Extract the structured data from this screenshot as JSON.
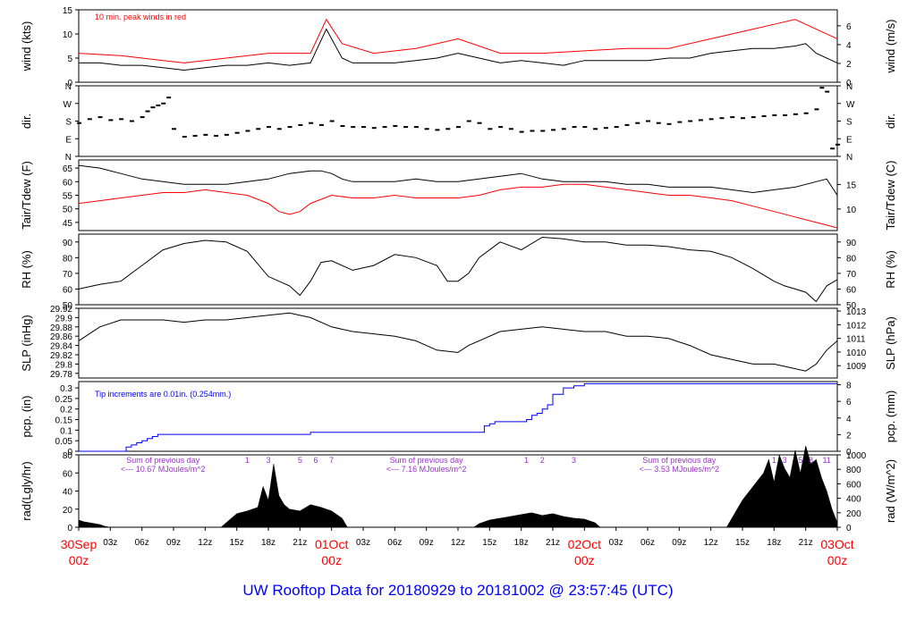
{
  "title": "UW Rooftop Data for 20180929  to  20181002 @ 23:57:45  (UTC)",
  "colors": {
    "black": "#000000",
    "red": "#ff0000",
    "blue": "#0000ff",
    "purple": "#9933cc",
    "title": "#0000ff"
  },
  "x_axis": {
    "tick_labels": [
      "03z",
      "06z",
      "09z",
      "12z",
      "15z",
      "18z",
      "21z",
      "03z",
      "06z",
      "09z",
      "12z",
      "15z",
      "18z",
      "21z",
      "03z",
      "06z",
      "09z",
      "12z",
      "15z",
      "18z",
      "21z"
    ],
    "tick_hours": [
      3,
      6,
      9,
      12,
      15,
      18,
      21,
      27,
      30,
      33,
      36,
      39,
      42,
      45,
      51,
      54,
      57,
      60,
      63,
      66,
      69
    ],
    "day_labels": [
      {
        "date": "30Sep",
        "time": "00z",
        "hour": 0
      },
      {
        "date": "01Oct",
        "time": "00z",
        "hour": 24
      },
      {
        "date": "02Oct",
        "time": "00z",
        "hour": 48
      },
      {
        "date": "03Oct",
        "time": "00z",
        "hour": 72
      }
    ],
    "range_hours": [
      0,
      72
    ]
  },
  "chart_data": [
    {
      "type": "line",
      "panel": "wind",
      "ylabel_left": "wind (kts)",
      "ylabel_right": "wind (m/s)",
      "ylim": [
        0,
        15
      ],
      "left_ticks": [
        0,
        5,
        10,
        15
      ],
      "right_ticks": [
        0,
        2,
        4,
        6
      ],
      "annotation": "10 min. peak winds in red",
      "series": [
        {
          "color": "black",
          "x": [
            0,
            2,
            4,
            6,
            8,
            10,
            12,
            14,
            16,
            18,
            20,
            22,
            23.5,
            25,
            26,
            28,
            30,
            32,
            34,
            36,
            38,
            40,
            42,
            44,
            46,
            48,
            50,
            52,
            54,
            56,
            58,
            60,
            62,
            64,
            66,
            68,
            69,
            70,
            72
          ],
          "y": [
            4,
            4,
            3.5,
            3.5,
            3,
            2.5,
            3,
            3.5,
            3.5,
            4,
            3.5,
            4,
            11,
            5,
            4,
            4,
            4,
            4.5,
            5,
            6,
            5,
            4,
            4.5,
            4,
            3.5,
            4.5,
            4.5,
            4.5,
            4.5,
            5,
            5,
            6,
            6.5,
            7,
            7,
            7.5,
            8,
            6,
            4
          ]
        },
        {
          "color": "red",
          "x": [
            0,
            4,
            8,
            10,
            14,
            18,
            22,
            23.5,
            25,
            28,
            32,
            36,
            40,
            44,
            48,
            52,
            56,
            60,
            64,
            66,
            68,
            70,
            72
          ],
          "y": [
            6,
            5.5,
            4.5,
            4,
            5,
            6,
            6,
            13,
            8,
            6,
            7,
            9,
            6,
            6,
            6.5,
            7,
            7,
            9,
            11,
            12,
            13,
            11,
            9
          ]
        }
      ]
    },
    {
      "type": "scatter",
      "panel": "direction",
      "ylabel_left": "dir.",
      "ylabel_right": "dir.",
      "tick_labels": [
        "N",
        "E",
        "S",
        "W",
        "N"
      ],
      "ylim": [
        0,
        360
      ],
      "x": [
        0,
        1,
        2,
        3,
        4,
        5,
        6,
        6.5,
        7,
        7.5,
        8,
        8.5,
        9,
        10,
        11,
        12,
        13,
        14,
        15,
        16,
        17,
        18,
        19,
        20,
        21,
        22,
        23,
        24,
        25,
        26,
        27,
        28,
        29,
        30,
        31,
        32,
        33,
        34,
        35,
        36,
        37,
        38,
        39,
        40,
        41,
        42,
        43,
        44,
        45,
        46,
        47,
        48,
        49,
        50,
        51,
        52,
        53,
        54,
        55,
        56,
        57,
        58,
        59,
        60,
        61,
        62,
        63,
        64,
        65,
        66,
        67,
        68,
        69,
        70,
        70.5,
        71,
        71.5,
        72
      ],
      "y": [
        170,
        190,
        200,
        185,
        190,
        180,
        200,
        230,
        250,
        260,
        270,
        300,
        140,
        100,
        105,
        110,
        105,
        110,
        120,
        130,
        140,
        150,
        140,
        150,
        160,
        170,
        160,
        180,
        155,
        150,
        150,
        145,
        150,
        155,
        150,
        150,
        140,
        135,
        140,
        150,
        180,
        170,
        140,
        150,
        140,
        125,
        130,
        130,
        135,
        140,
        150,
        150,
        140,
        145,
        150,
        160,
        170,
        180,
        170,
        165,
        175,
        180,
        185,
        190,
        195,
        200,
        195,
        200,
        205,
        210,
        210,
        215,
        220,
        240,
        350,
        330,
        40,
        60
      ]
    },
    {
      "type": "line",
      "panel": "temperature",
      "ylabel_left": "Tair/Tdew (F)",
      "ylabel_right": "Tair/Tdew (C)",
      "ylim": [
        42,
        68
      ],
      "left_ticks": [
        45,
        50,
        55,
        60,
        65
      ],
      "right_ticks": [
        10,
        15
      ],
      "series": [
        {
          "name": "Tair",
          "color": "black",
          "x": [
            0,
            2,
            4,
            6,
            8,
            10,
            12,
            14,
            16,
            18,
            20,
            22,
            23,
            24,
            25,
            26,
            28,
            30,
            32,
            34,
            36,
            38,
            40,
            42,
            44,
            46,
            48,
            50,
            52,
            54,
            56,
            58,
            60,
            62,
            64,
            66,
            68,
            70,
            71,
            72
          ],
          "y": [
            66,
            65,
            63,
            61,
            60,
            59,
            59,
            59,
            60,
            61,
            63,
            64,
            64,
            63,
            61,
            60,
            60,
            60,
            61,
            60,
            60,
            61,
            62,
            63,
            61,
            60,
            60,
            60,
            59,
            59,
            58,
            58,
            58,
            57,
            56,
            57,
            58,
            60,
            61,
            55
          ]
        },
        {
          "name": "Tdew",
          "color": "red",
          "x": [
            0,
            2,
            4,
            6,
            8,
            10,
            12,
            14,
            16,
            18,
            19,
            20,
            21,
            22,
            24,
            26,
            28,
            30,
            32,
            34,
            36,
            38,
            40,
            42,
            44,
            46,
            48,
            50,
            52,
            54,
            56,
            58,
            60,
            62,
            64,
            66,
            68,
            70,
            72
          ],
          "y": [
            52,
            53,
            54,
            55,
            56,
            56,
            57,
            56,
            55,
            52,
            49,
            48,
            49,
            52,
            55,
            54,
            54,
            55,
            54,
            54,
            54,
            55,
            57,
            58,
            58,
            59,
            59,
            58,
            57,
            56,
            55,
            55,
            54,
            53,
            51,
            49,
            47,
            45,
            43
          ]
        }
      ]
    },
    {
      "type": "line",
      "panel": "humidity",
      "ylabel_left": "RH (%)",
      "ylabel_right": "RH (%)",
      "ylim": [
        50,
        95
      ],
      "left_ticks": [
        50,
        60,
        70,
        80,
        90
      ],
      "right_ticks": [
        50,
        60,
        70,
        80,
        90
      ],
      "series": [
        {
          "color": "black",
          "x": [
            0,
            2,
            4,
            6,
            8,
            10,
            12,
            14,
            16,
            18,
            20,
            21,
            22,
            23,
            24,
            26,
            28,
            30,
            32,
            34,
            35,
            36,
            37,
            38,
            40,
            42,
            44,
            46,
            48,
            50,
            52,
            54,
            56,
            58,
            60,
            62,
            64,
            66,
            67,
            68,
            69,
            70,
            71,
            72
          ],
          "y": [
            60,
            63,
            65,
            75,
            85,
            89,
            91,
            90,
            84,
            68,
            62,
            56,
            65,
            77,
            78,
            72,
            75,
            82,
            80,
            75,
            65,
            65,
            70,
            80,
            90,
            85,
            93,
            92,
            90,
            90,
            88,
            88,
            87,
            85,
            84,
            80,
            73,
            65,
            62,
            60,
            58,
            52,
            62,
            66
          ]
        }
      ]
    },
    {
      "type": "line",
      "panel": "pressure",
      "ylabel_left": "SLP (inHg)",
      "ylabel_right": "SLP (hPa)",
      "ylim": [
        29.77,
        29.92
      ],
      "left_ticks": [
        29.78,
        29.8,
        29.82,
        29.84,
        29.86,
        29.88,
        29.9,
        29.92
      ],
      "right_ticks": [
        1009,
        1010,
        1011,
        1012,
        1013
      ],
      "series": [
        {
          "color": "black",
          "x": [
            0,
            2,
            4,
            6,
            8,
            10,
            12,
            14,
            16,
            18,
            20,
            22,
            24,
            26,
            28,
            30,
            32,
            34,
            36,
            37,
            38,
            40,
            42,
            44,
            46,
            48,
            50,
            52,
            54,
            56,
            58,
            60,
            62,
            64,
            66,
            68,
            69,
            70,
            71,
            72
          ],
          "y": [
            29.85,
            29.88,
            29.895,
            29.895,
            29.895,
            29.89,
            29.895,
            29.895,
            29.9,
            29.905,
            29.91,
            29.9,
            29.88,
            29.87,
            29.865,
            29.86,
            29.85,
            29.83,
            29.825,
            29.84,
            29.85,
            29.87,
            29.875,
            29.88,
            29.875,
            29.87,
            29.87,
            29.86,
            29.86,
            29.855,
            29.84,
            29.82,
            29.81,
            29.8,
            29.8,
            29.79,
            29.785,
            29.8,
            29.83,
            29.85
          ]
        }
      ]
    },
    {
      "type": "line",
      "panel": "precipitation",
      "ylabel_left": "pcp. (in)",
      "ylabel_right": "pcp. (mm)",
      "ylim": [
        0,
        0.33
      ],
      "left_ticks": [
        0,
        0.05,
        0.1,
        0.15,
        0.2,
        0.25,
        0.3
      ],
      "right_ticks": [
        0,
        2,
        4,
        6,
        8
      ],
      "annotation": "Tip increments are 0.01in. (0.254mm.)",
      "series": [
        {
          "color": "blue",
          "x": [
            0,
            4,
            4.5,
            5,
            5.5,
            6,
            6.5,
            7,
            7.5,
            8,
            22,
            38,
            38.5,
            39,
            39.5,
            42,
            42.5,
            43,
            43.5,
            44,
            44.5,
            45,
            46,
            47,
            48,
            72
          ],
          "y": [
            0,
            0,
            0.02,
            0.03,
            0.04,
            0.05,
            0.06,
            0.07,
            0.08,
            0.08,
            0.09,
            0.09,
            0.12,
            0.13,
            0.14,
            0.14,
            0.15,
            0.17,
            0.18,
            0.2,
            0.22,
            0.27,
            0.3,
            0.31,
            0.32,
            0.32
          ]
        }
      ]
    },
    {
      "type": "area",
      "panel": "radiation",
      "ylabel_left": "rad(Lgly/hr)",
      "ylabel_right": "rad (W/m^2)",
      "ylim": [
        0,
        80
      ],
      "left_ticks": [
        0,
        20,
        40,
        60,
        80
      ],
      "right_ticks": [
        0,
        200,
        400,
        600,
        800,
        1000
      ],
      "annotations": [
        {
          "line1": "Sum of previous day",
          "line2": "<--- 10.67 MJoules/m^2",
          "hour": 8
        },
        {
          "line1": "Sum of previous day",
          "line2": "<--- 7.16 MJoules/m^2",
          "hour": 33
        },
        {
          "line1": "Sum of previous day",
          "line2": "<--- 3.53 MJoules/m^2",
          "hour": 57
        }
      ],
      "markers": [
        {
          "label": "1",
          "hour": 16
        },
        {
          "label": "3",
          "hour": 18
        },
        {
          "label": "5",
          "hour": 21
        },
        {
          "label": "6",
          "hour": 22.5
        },
        {
          "label": "7",
          "hour": 24
        },
        {
          "label": "1",
          "hour": 42.5
        },
        {
          "label": "2",
          "hour": 44
        },
        {
          "label": "3",
          "hour": 47
        },
        {
          "label": "1",
          "hour": 66
        },
        {
          "label": "3",
          "hour": 67
        },
        {
          "label": "5",
          "hour": 68.5
        },
        {
          "label": "8",
          "hour": 69.5
        },
        {
          "label": "11",
          "hour": 71
        }
      ],
      "series": [
        {
          "color": "black",
          "x": [
            0,
            0.5,
            1,
            2,
            2.5,
            3
          ],
          "y": [
            8,
            6,
            5,
            3,
            1,
            0
          ]
        },
        {
          "color": "black",
          "x": [
            13.5,
            14,
            15,
            16,
            17,
            17.5,
            18,
            18.5,
            19,
            19.5,
            20,
            21,
            22,
            23,
            24,
            25,
            25.5
          ],
          "y": [
            0,
            5,
            15,
            18,
            22,
            45,
            30,
            70,
            35,
            25,
            20,
            18,
            25,
            22,
            18,
            10,
            0
          ]
        },
        {
          "color": "black",
          "x": [
            37.5,
            38,
            39,
            40,
            41,
            42,
            43,
            44,
            45,
            46,
            47,
            48,
            49,
            49.5
          ],
          "y": [
            0,
            4,
            8,
            10,
            12,
            14,
            16,
            13,
            15,
            12,
            10,
            9,
            5,
            0
          ]
        },
        {
          "color": "black",
          "x": [
            61.5,
            62,
            63,
            64,
            65,
            65.5,
            66,
            66.5,
            67,
            67.5,
            68,
            68.5,
            69,
            69.5,
            70,
            70.5,
            71,
            71.5,
            72
          ],
          "y": [
            0,
            10,
            30,
            45,
            60,
            75,
            50,
            80,
            65,
            55,
            85,
            60,
            90,
            70,
            75,
            55,
            40,
            20,
            5
          ]
        }
      ]
    }
  ]
}
